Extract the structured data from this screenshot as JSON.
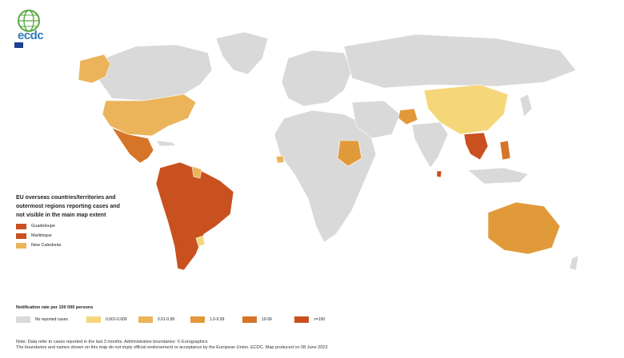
{
  "header": {
    "org_short": "ecdc",
    "logo_icon": "globe-logo-icon",
    "colors": {
      "logo_blue": "#2f7ab8",
      "logo_green": "#5aa845",
      "eu_blue": "#1f3f95"
    }
  },
  "map": {
    "colors": {
      "no_cases": "#d9d9d9",
      "c1": "#f5d77a",
      "c2": "#ebb45a",
      "c3": "#e19a3a",
      "c4": "#d67528",
      "c5": "#c9511f",
      "border": "#ffffff",
      "ocean": "#ffffff"
    },
    "regions": [
      {
        "name": "North America (USA)",
        "class": "c2"
      },
      {
        "name": "Alaska",
        "class": "c2"
      },
      {
        "name": "Mexico & Central America",
        "class": "c4"
      },
      {
        "name": "South America",
        "class": "c5"
      },
      {
        "name": "Argentina",
        "class": "c5"
      },
      {
        "name": "Uruguay",
        "class": "c1"
      },
      {
        "name": "China",
        "class": "c1"
      },
      {
        "name": "Sudan",
        "class": "c3"
      },
      {
        "name": "Afghanistan",
        "class": "c3"
      },
      {
        "name": "Southeast Asia",
        "class": "c5"
      },
      {
        "name": "Philippines",
        "class": "c4"
      },
      {
        "name": "Australia",
        "class": "c3"
      }
    ]
  },
  "overseas": {
    "title": "EU overseas countries/territories and outermost regions reporting cases and not visible in the main map extent",
    "items": [
      {
        "label": "Guadeloupe",
        "color": "#c9511f"
      },
      {
        "label": "Martinique",
        "color": "#c9511f"
      },
      {
        "label": "New Caledonia",
        "color": "#ebb45a"
      }
    ]
  },
  "legend": {
    "title": "Notification rate per 100 000 persons",
    "items": [
      {
        "label": "No reported cases",
        "color": "#d9d9d9"
      },
      {
        "label": "0.001-0.009",
        "color": "#f5d77a"
      },
      {
        "label": "0.01-0.99",
        "color": "#ebb45a"
      },
      {
        "label": "1.0-9.99",
        "color": "#e19a3a"
      },
      {
        "label": "10-99",
        "color": "#d67528"
      },
      {
        "label": ">=100",
        "color": "#c9511f"
      }
    ]
  },
  "footer": {
    "note_line1": "Note: Data refer to cases reported in the last 3 months. Administrative boundaries: © Eurographics",
    "note_line2": "The boundaries and names shown on this map do not imply official endorsement or acceptance by the European Union. ECDC. Map produced on 08 June 2023"
  }
}
